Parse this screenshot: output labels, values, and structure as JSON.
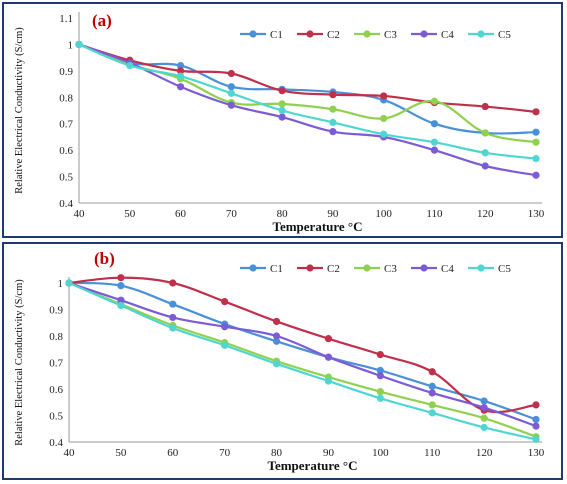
{
  "chart_data": [
    {
      "type": "line",
      "panel_label": "(a)",
      "xlabel": "Temperature °C",
      "ylabel": "Relative Electrical Conductivity (S/cm)",
      "x": [
        40,
        50,
        60,
        70,
        80,
        90,
        100,
        110,
        120,
        130
      ],
      "ylim": [
        0.4,
        1.1
      ],
      "yticks": [
        "0.4",
        "0.5",
        "0.6",
        "0.7",
        "0.8",
        "0.9",
        "1",
        "1.1"
      ],
      "xticks": [
        "40",
        "50",
        "60",
        "70",
        "80",
        "90",
        "100",
        "110",
        "120",
        "130"
      ],
      "grid": false,
      "legend": "top",
      "series": [
        {
          "name": "C1",
          "color": "#4a90d9",
          "values": [
            1.0,
            0.93,
            0.92,
            0.84,
            0.83,
            0.82,
            0.79,
            0.7,
            0.665,
            0.668
          ]
        },
        {
          "name": "C2",
          "color": "#c0304a",
          "values": [
            1.0,
            0.94,
            0.9,
            0.89,
            0.825,
            0.81,
            0.805,
            0.78,
            0.765,
            0.745
          ]
        },
        {
          "name": "C3",
          "color": "#8fd14f",
          "values": [
            1.0,
            0.925,
            0.87,
            0.78,
            0.775,
            0.755,
            0.72,
            0.785,
            0.665,
            0.63
          ]
        },
        {
          "name": "C4",
          "color": "#7b5bd6",
          "values": [
            1.0,
            0.93,
            0.84,
            0.77,
            0.725,
            0.67,
            0.65,
            0.6,
            0.54,
            0.505
          ]
        },
        {
          "name": "C5",
          "color": "#4fd6d0",
          "values": [
            1.0,
            0.92,
            0.88,
            0.815,
            0.75,
            0.705,
            0.66,
            0.63,
            0.59,
            0.568
          ]
        }
      ]
    },
    {
      "type": "line",
      "panel_label": "(b)",
      "xlabel": "Temperature °C",
      "ylabel": "Relative Electrical Conductivity (S/cm)",
      "x": [
        40,
        50,
        60,
        70,
        80,
        90,
        100,
        110,
        120,
        130
      ],
      "ylim": [
        0.4,
        1.0
      ],
      "yticks": [
        "0.4",
        "0.5",
        "0.6",
        "0.7",
        "0.8",
        "0.9",
        "1"
      ],
      "xticks": [
        "40",
        "50",
        "60",
        "70",
        "80",
        "90",
        "100",
        "110",
        "120",
        "130"
      ],
      "grid": false,
      "legend": "top",
      "series": [
        {
          "name": "C1",
          "color": "#4a90d9",
          "values": [
            1.0,
            0.99,
            0.92,
            0.845,
            0.78,
            0.72,
            0.67,
            0.61,
            0.555,
            0.485
          ]
        },
        {
          "name": "C2",
          "color": "#c0304a",
          "values": [
            1.0,
            1.02,
            1.0,
            0.93,
            0.855,
            0.79,
            0.73,
            0.665,
            0.52,
            0.54
          ]
        },
        {
          "name": "C3",
          "color": "#8fd14f",
          "values": [
            1.0,
            0.92,
            0.84,
            0.775,
            0.705,
            0.645,
            0.59,
            0.54,
            0.49,
            0.42
          ]
        },
        {
          "name": "C4",
          "color": "#7b5bd6",
          "values": [
            1.0,
            0.935,
            0.87,
            0.835,
            0.8,
            0.72,
            0.65,
            0.585,
            0.53,
            0.46
          ]
        },
        {
          "name": "C5",
          "color": "#4fd6d0",
          "values": [
            1.0,
            0.915,
            0.83,
            0.765,
            0.695,
            0.63,
            0.565,
            0.51,
            0.455,
            0.41
          ]
        }
      ]
    }
  ]
}
